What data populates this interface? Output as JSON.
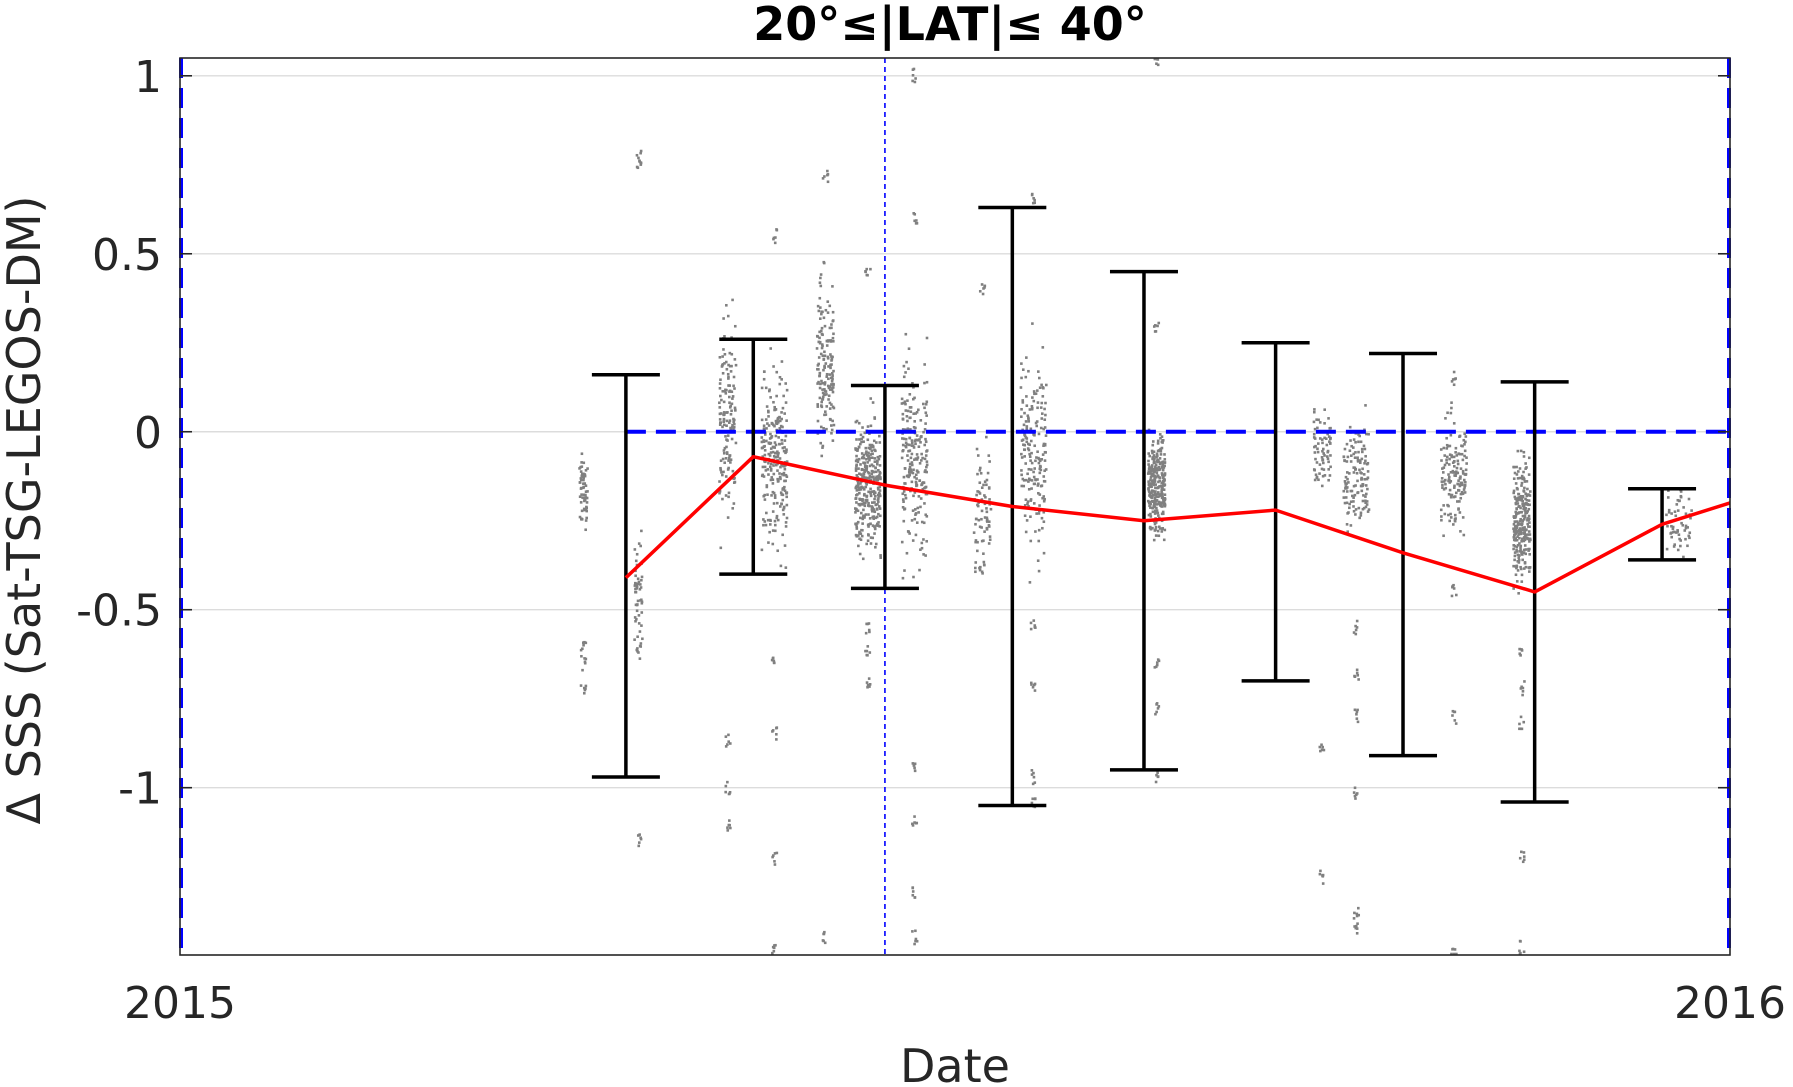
{
  "chart_data": {
    "type": "scatter",
    "title": "20°≤|LAT|≤ 40°",
    "xlabel": "Date",
    "ylabel": "Δ SSS (Sat-TSG-LEGOS-DM)",
    "xlim": [
      "2015-01-01",
      "2016-01-01"
    ],
    "ylim": [
      -1.47,
      1.05
    ],
    "x_ticks": [
      {
        "date": "2015-01-01",
        "label": "2015"
      },
      {
        "date": "2016-01-01",
        "label": "2016"
      }
    ],
    "y_ticks": [
      {
        "value": 1,
        "label": "1"
      },
      {
        "value": 0.5,
        "label": "0.5"
      },
      {
        "value": 0,
        "label": "0"
      },
      {
        "value": -0.5,
        "label": "-0.5"
      },
      {
        "value": -1,
        "label": "-1"
      }
    ],
    "grid": "horizontal",
    "colors": {
      "scatter": "#808080",
      "mean_line": "#ff0000",
      "error_bars": "#000000",
      "reference": "#0000ff",
      "grid": "#dcdcdc",
      "axis": "#262626"
    },
    "reference_vertical_line": "2015-06-16",
    "reference_horizontal_line": {
      "y": 0,
      "from": "2015-04-16",
      "to": "2016-01-01"
    },
    "series": [
      {
        "type": "line_with_errorbars",
        "points": [
          {
            "x": "2015-04-16",
            "y": -0.41,
            "low": -0.97,
            "high": 0.16
          },
          {
            "x": "2015-05-16",
            "y": -0.07,
            "low": -0.4,
            "high": 0.26
          },
          {
            "x": "2015-06-16",
            "y": -0.15,
            "low": -0.44,
            "high": 0.13
          },
          {
            "x": "2015-07-16",
            "y": -0.21,
            "low": -1.05,
            "high": 0.63
          },
          {
            "x": "2015-08-16",
            "y": -0.25,
            "low": -0.95,
            "high": 0.45
          },
          {
            "x": "2015-09-16",
            "y": -0.22,
            "low": -0.7,
            "high": 0.25
          },
          {
            "x": "2015-10-16",
            "y": -0.34,
            "low": -0.91,
            "high": 0.22
          },
          {
            "x": "2015-11-16",
            "y": -0.45,
            "low": -1.04,
            "high": 0.14
          },
          {
            "x": "2015-12-16",
            "y": -0.26,
            "low": -0.36,
            "high": -0.16
          },
          {
            "x": "2016-01-01",
            "y": -0.2
          }
        ]
      }
    ],
    "scatter_clusters": [
      {
        "x": "2015-04-06",
        "x_spread_days": 1,
        "center": -0.17,
        "spread": 0.08,
        "count": 60,
        "outliers": [
          -0.6,
          -0.65,
          -0.72
        ]
      },
      {
        "x": "2015-04-19",
        "x_spread_days": 1,
        "center": -0.45,
        "spread": 0.12,
        "count": 50,
        "outliers": [
          0.77,
          0.75,
          -1.15,
          -0.62
        ]
      },
      {
        "x": "2015-05-10",
        "x_spread_days": 2,
        "center": 0.05,
        "spread": 0.22,
        "count": 140,
        "outliers": [
          -0.87,
          -1.0,
          -1.1
        ]
      },
      {
        "x": "2015-05-21",
        "x_spread_days": 3,
        "center": -0.08,
        "spread": 0.2,
        "count": 240,
        "outliers": [
          -0.85,
          -1.2,
          -1.45,
          0.55,
          -0.65
        ]
      },
      {
        "x": "2015-06-02",
        "x_spread_days": 2,
        "center": 0.18,
        "spread": 0.2,
        "count": 160,
        "outliers": [
          -1.42,
          0.72
        ]
      },
      {
        "x": "2015-06-12",
        "x_spread_days": 3,
        "center": -0.15,
        "spread": 0.14,
        "count": 320,
        "outliers": [
          -0.55,
          -0.62,
          -0.7,
          0.45
        ]
      },
      {
        "x": "2015-06-23",
        "x_spread_days": 3,
        "center": -0.08,
        "spread": 0.22,
        "count": 220,
        "outliers": [
          -0.95,
          -1.1,
          -1.3,
          -1.42,
          1.0,
          0.6
        ]
      },
      {
        "x": "2015-07-09",
        "x_spread_days": 2,
        "center": -0.2,
        "spread": 0.14,
        "count": 70,
        "outliers": [
          -0.38,
          0.4
        ]
      },
      {
        "x": "2015-07-21",
        "x_spread_days": 3,
        "center": -0.05,
        "spread": 0.22,
        "count": 180,
        "outliers": [
          -0.55,
          -0.72,
          -0.97,
          -1.05,
          0.65
        ]
      },
      {
        "x": "2015-08-19",
        "x_spread_days": 2,
        "center": -0.15,
        "spread": 0.12,
        "count": 280,
        "outliers": [
          0.3,
          -0.65,
          -0.78,
          -0.97,
          1.05
        ]
      },
      {
        "x": "2015-09-27",
        "x_spread_days": 2,
        "center": -0.05,
        "spread": 0.09,
        "count": 70,
        "outliers": [
          -0.88,
          -1.25
        ]
      },
      {
        "x": "2015-10-05",
        "x_spread_days": 3,
        "center": -0.12,
        "spread": 0.12,
        "count": 130,
        "outliers": [
          -0.55,
          -0.68,
          -0.8,
          -1.02,
          -1.35,
          -1.4
        ]
      },
      {
        "x": "2015-10-28",
        "x_spread_days": 3,
        "center": -0.12,
        "spread": 0.12,
        "count": 150,
        "outliers": [
          -0.45,
          -0.8,
          -1.47,
          0.15
        ]
      },
      {
        "x": "2015-11-13",
        "x_spread_days": 2,
        "center": -0.25,
        "spread": 0.14,
        "count": 260,
        "outliers": [
          -0.62,
          -0.72,
          -0.82,
          -1.2,
          -1.45
        ]
      },
      {
        "x": "2015-12-20",
        "x_spread_days": 3,
        "center": -0.27,
        "spread": 0.07,
        "count": 50,
        "outliers": [
          -0.18
        ]
      }
    ]
  }
}
